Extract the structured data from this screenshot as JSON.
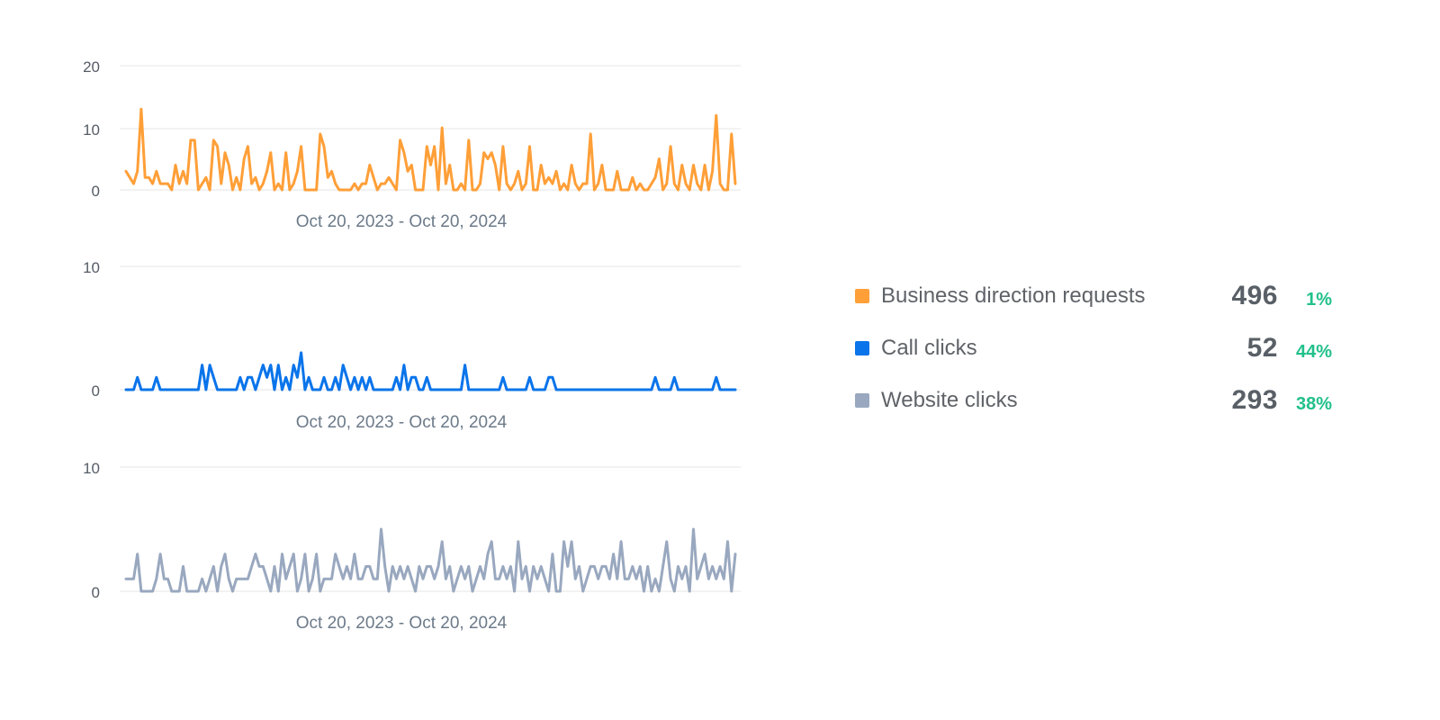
{
  "colors": {
    "orange": "#FF9F38",
    "blue": "#0A74EA",
    "gray": "#99A8BF",
    "positive": "#21C08B",
    "grid": "#E6E6E6"
  },
  "chart_data": [
    {
      "type": "line",
      "series_name": "Business direction requests",
      "color": "#FF9F38",
      "xlabel": "Oct 20, 2023 - Oct 20, 2024",
      "ylabel": "",
      "y_ticks": [
        "20",
        "10",
        "0"
      ],
      "ylim": [
        0,
        20
      ],
      "values": [
        3,
        2,
        1,
        3,
        13,
        2,
        2,
        1,
        3,
        1,
        1,
        1,
        0,
        4,
        1,
        3,
        1,
        8,
        8,
        0,
        1,
        2,
        0,
        8,
        7,
        1,
        6,
        4,
        0,
        2,
        0,
        5,
        7,
        1,
        2,
        0,
        1,
        3,
        6,
        0,
        1,
        0,
        6,
        0,
        1,
        3,
        7,
        0,
        0,
        0,
        0,
        9,
        7,
        2,
        3,
        1,
        0,
        0,
        0,
        0,
        1,
        0,
        1,
        1,
        4,
        2,
        0,
        1,
        1,
        2,
        1,
        0,
        8,
        6,
        3,
        4,
        0,
        0,
        0,
        7,
        4,
        7,
        0,
        10,
        1,
        4,
        0,
        0,
        1,
        0,
        8,
        0,
        0,
        1,
        6,
        5,
        6,
        4,
        0,
        7,
        1,
        0,
        1,
        3,
        0,
        1,
        7,
        0,
        0,
        4,
        1,
        2,
        1,
        3,
        0,
        1,
        0,
        4,
        1,
        0,
        1,
        1,
        9,
        0,
        1,
        4,
        0,
        0,
        0,
        3,
        0,
        0,
        0,
        2,
        0,
        1,
        0,
        0,
        1,
        2,
        5,
        0,
        1,
        7,
        1,
        0,
        4,
        1,
        0,
        4,
        1,
        0,
        4,
        0,
        3,
        12,
        1,
        0,
        0,
        9,
        1
      ]
    },
    {
      "type": "line",
      "series_name": "Call clicks",
      "color": "#0A74EA",
      "xlabel": "Oct 20, 2023 - Oct 20, 2024",
      "ylabel": "",
      "y_ticks": [
        "10",
        "0"
      ],
      "ylim": [
        0,
        10
      ],
      "values": [
        0,
        0,
        0,
        1,
        0,
        0,
        0,
        0,
        1,
        0,
        0,
        0,
        0,
        0,
        0,
        0,
        0,
        0,
        0,
        0,
        2,
        0,
        2,
        1,
        0,
        0,
        0,
        0,
        0,
        0,
        1,
        0,
        1,
        1,
        0,
        1,
        2,
        1,
        2,
        0,
        2,
        0,
        1,
        0,
        2,
        1,
        3,
        0,
        1,
        0,
        0,
        0,
        1,
        0,
        0,
        1,
        0,
        2,
        1,
        0,
        1,
        0,
        1,
        0,
        1,
        0,
        0,
        0,
        0,
        0,
        0,
        1,
        0,
        2,
        0,
        1,
        1,
        0,
        0,
        1,
        0,
        0,
        0,
        0,
        0,
        0,
        0,
        0,
        0,
        2,
        0,
        0,
        0,
        0,
        0,
        0,
        0,
        0,
        0,
        1,
        0,
        0,
        0,
        0,
        0,
        0,
        1,
        0,
        0,
        0,
        0,
        1,
        1,
        0,
        0,
        0,
        0,
        0,
        0,
        0,
        0,
        0,
        0,
        0,
        0,
        0,
        0,
        0,
        0,
        0,
        0,
        0,
        0,
        0,
        0,
        0,
        0,
        0,
        0,
        1,
        0,
        0,
        0,
        0,
        1,
        0,
        0,
        0,
        0,
        0,
        0,
        0,
        0,
        0,
        0,
        1,
        0,
        0,
        0,
        0,
        0
      ]
    },
    {
      "type": "line",
      "series_name": "Website clicks",
      "color": "#99A8BF",
      "xlabel": "Oct 20, 2023 - Oct 20, 2024",
      "ylabel": "",
      "y_ticks": [
        "10",
        "0"
      ],
      "ylim": [
        0,
        10
      ],
      "values": [
        1,
        1,
        1,
        3,
        0,
        0,
        0,
        0,
        1,
        3,
        1,
        1,
        0,
        0,
        0,
        2,
        0,
        0,
        0,
        0,
        1,
        0,
        1,
        2,
        0,
        2,
        3,
        1,
        0,
        1,
        1,
        1,
        1,
        2,
        3,
        2,
        2,
        1,
        0,
        2,
        0,
        3,
        1,
        2,
        3,
        0,
        1,
        3,
        0,
        1,
        3,
        0,
        1,
        1,
        1,
        3,
        2,
        1,
        2,
        1,
        3,
        1,
        1,
        2,
        2,
        1,
        1,
        5,
        2,
        0,
        2,
        1,
        2,
        1,
        2,
        1,
        0,
        2,
        1,
        2,
        2,
        1,
        2,
        4,
        1,
        2,
        0,
        1,
        2,
        1,
        2,
        0,
        1,
        2,
        1,
        3,
        4,
        1,
        1,
        2,
        1,
        2,
        0,
        4,
        1,
        2,
        0,
        2,
        1,
        2,
        1,
        0,
        3,
        0,
        0,
        4,
        2,
        4,
        1,
        2,
        0,
        1,
        2,
        2,
        1,
        2,
        2,
        1,
        3,
        1,
        4,
        1,
        1,
        2,
        1,
        2,
        0,
        2,
        0,
        1,
        0,
        2,
        4,
        1,
        0,
        2,
        1,
        2,
        0,
        5,
        1,
        2,
        3,
        1,
        2,
        1,
        2,
        1,
        4,
        0,
        3
      ]
    }
  ],
  "legend": [
    {
      "label": "Business direction requests",
      "value": "496",
      "change": "1%",
      "color": "#FF9F38"
    },
    {
      "label": "Call clicks",
      "value": "52",
      "change": "44%",
      "color": "#0A74EA"
    },
    {
      "label": "Website clicks",
      "value": "293",
      "change": "38%",
      "color": "#99A8BF"
    }
  ]
}
